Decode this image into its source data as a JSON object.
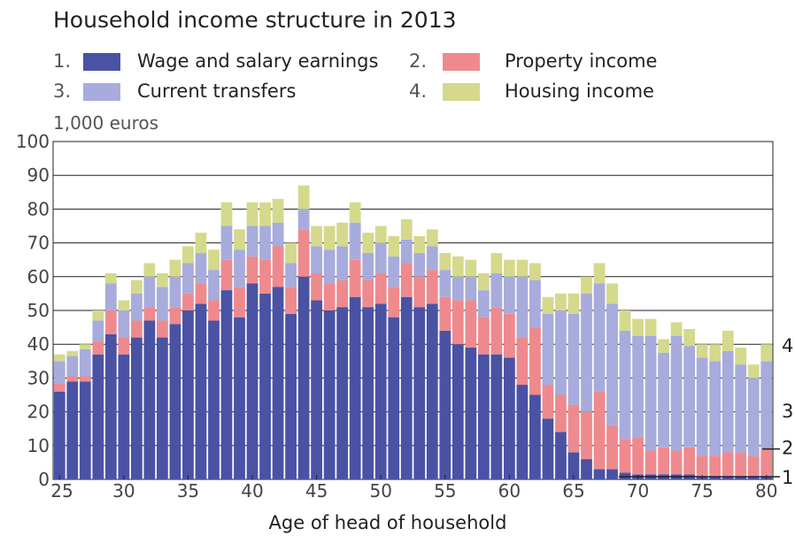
{
  "chart_data": {
    "type": "bar",
    "stacked": true,
    "title": "Household income structure in 2013",
    "unit_label": "1,000 euros",
    "xlabel": "Age of head of household",
    "ylabel": "",
    "ylim": [
      0,
      100
    ],
    "yticks": [
      0,
      10,
      20,
      30,
      40,
      50,
      60,
      70,
      80,
      90,
      100
    ],
    "xlim": [
      25,
      80
    ],
    "xticks": [
      25,
      30,
      35,
      40,
      45,
      50,
      55,
      60,
      65,
      70,
      75,
      80
    ],
    "grid": true,
    "legend_position": "top",
    "categories": [
      25,
      26,
      27,
      28,
      29,
      30,
      31,
      32,
      33,
      34,
      35,
      36,
      37,
      38,
      39,
      40,
      41,
      42,
      43,
      44,
      45,
      46,
      47,
      48,
      49,
      50,
      51,
      52,
      53,
      54,
      55,
      56,
      57,
      58,
      59,
      60,
      61,
      62,
      63,
      64,
      65,
      66,
      67,
      68,
      69,
      70,
      71,
      72,
      73,
      74,
      75,
      76,
      77,
      78,
      79,
      80
    ],
    "series": [
      {
        "name": "Wage and salary earnings",
        "legend_number": "1.",
        "end_label": "1",
        "color": "#4a52a4",
        "values": [
          26,
          29,
          29,
          37,
          43,
          37,
          42,
          47,
          42,
          46,
          50,
          52,
          47,
          56,
          48,
          58,
          55,
          57,
          49,
          60,
          53,
          50,
          51,
          54,
          51,
          52,
          48,
          54,
          51,
          52,
          44,
          40,
          39,
          37,
          37,
          36,
          28,
          25,
          18,
          14,
          8,
          6,
          3,
          3,
          2,
          1.5,
          1.5,
          1.5,
          1.5,
          1.5,
          1,
          1,
          1,
          1,
          1,
          1
        ]
      },
      {
        "name": "Property income",
        "legend_number": "2.",
        "end_label": "2",
        "color": "#ee8a8e",
        "values": [
          2.5,
          1.5,
          1.5,
          4,
          7,
          5,
          5,
          4,
          5,
          5,
          5,
          6,
          6,
          9,
          9,
          8,
          10,
          12,
          8,
          14,
          8,
          8,
          8,
          11,
          8,
          9,
          9,
          10,
          9,
          10,
          10,
          13,
          14,
          11,
          14,
          13,
          14,
          20,
          10,
          11,
          14,
          14,
          23,
          13,
          10,
          11,
          7,
          8,
          7,
          8,
          6,
          6,
          7,
          7,
          6,
          8
        ]
      },
      {
        "name": "Current transfers",
        "legend_number": "3.",
        "end_label": "3",
        "color": "#a7acdc",
        "values": [
          6.5,
          6,
          8,
          6,
          8,
          8,
          8,
          9,
          10,
          9,
          9,
          9,
          9,
          10,
          11,
          9,
          10,
          7,
          7,
          6,
          8,
          10,
          10,
          11,
          8,
          9,
          9,
          7,
          7,
          7,
          8,
          7,
          7,
          8,
          10,
          11,
          18,
          14,
          21,
          25,
          27,
          35,
          32,
          36,
          32,
          30,
          34,
          28,
          34,
          30,
          29,
          28,
          30,
          26,
          23,
          26
        ]
      },
      {
        "name": "Housing income",
        "legend_number": "4.",
        "end_label": "4",
        "color": "#d5d98c",
        "values": [
          2,
          1.5,
          1.5,
          3,
          3,
          3,
          4,
          4,
          4,
          5,
          5,
          6,
          6,
          7,
          6,
          7,
          7,
          7,
          6,
          7,
          6,
          7,
          7,
          6,
          6,
          5,
          6,
          6,
          5,
          5,
          5,
          6,
          5,
          5,
          6,
          5,
          5,
          5,
          5,
          5,
          6,
          5,
          6,
          6,
          6,
          5,
          5,
          4,
          4,
          5,
          4,
          5,
          6,
          5,
          4,
          5
        ]
      }
    ]
  }
}
